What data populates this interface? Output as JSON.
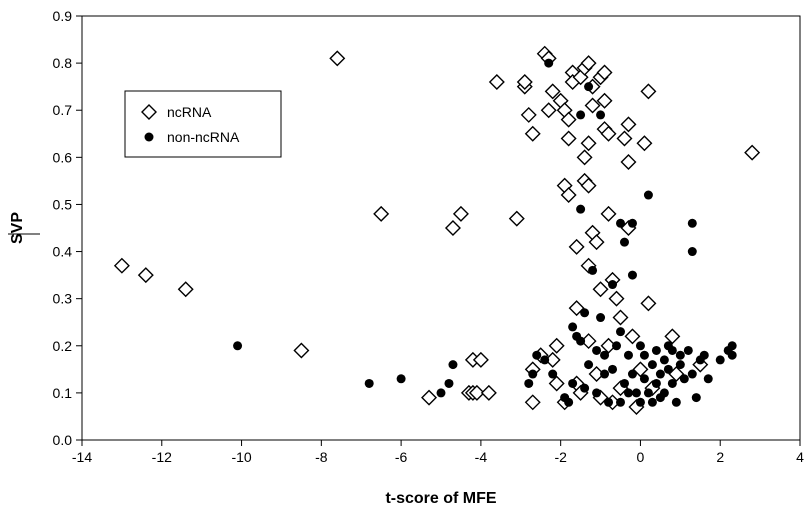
{
  "chart_data": {
    "type": "scatter",
    "title": "",
    "xlabel": "t-score of MFE",
    "ylabel": "SVP",
    "xlim": [
      -14,
      4
    ],
    "ylim": [
      0.0,
      0.9
    ],
    "x_ticks": [
      "-14",
      "-12",
      "-10",
      "-8",
      "-6",
      "-4",
      "-2",
      "0",
      "2",
      "4"
    ],
    "y_ticks": [
      "0.0",
      "0.1",
      "0.2",
      "0.3",
      "0.4",
      "0.5",
      "0.6",
      "0.7",
      "0.8",
      "0.9"
    ],
    "legend_position": "upper-left",
    "grid": false,
    "series": [
      {
        "name": "ncRNA",
        "marker": "diamond-open",
        "color": "#000000",
        "points": [
          [
            -13.0,
            0.37
          ],
          [
            -12.4,
            0.35
          ],
          [
            -11.4,
            0.32
          ],
          [
            -8.5,
            0.19
          ],
          [
            -7.6,
            0.81
          ],
          [
            -6.5,
            0.48
          ],
          [
            -5.3,
            0.09
          ],
          [
            -4.7,
            0.45
          ],
          [
            -4.5,
            0.48
          ],
          [
            -4.3,
            0.1
          ],
          [
            -4.2,
            0.17
          ],
          [
            -4.2,
            0.1
          ],
          [
            -4.0,
            0.17
          ],
          [
            -4.1,
            0.1
          ],
          [
            -3.8,
            0.1
          ],
          [
            -3.6,
            0.76
          ],
          [
            -3.1,
            0.47
          ],
          [
            -2.9,
            0.75
          ],
          [
            -2.9,
            0.76
          ],
          [
            -2.8,
            0.69
          ],
          [
            -2.7,
            0.08
          ],
          [
            -2.7,
            0.65
          ],
          [
            -2.7,
            0.15
          ],
          [
            -2.5,
            0.18
          ],
          [
            -2.4,
            0.82
          ],
          [
            -2.3,
            0.81
          ],
          [
            -2.3,
            0.7
          ],
          [
            -2.2,
            0.74
          ],
          [
            -2.2,
            0.17
          ],
          [
            -2.1,
            0.12
          ],
          [
            -2.1,
            0.2
          ],
          [
            -2.0,
            0.72
          ],
          [
            -1.9,
            0.7
          ],
          [
            -1.9,
            0.08
          ],
          [
            -1.9,
            0.54
          ],
          [
            -1.8,
            0.52
          ],
          [
            -1.8,
            0.68
          ],
          [
            -1.8,
            0.64
          ],
          [
            -1.7,
            0.78
          ],
          [
            -1.7,
            0.76
          ],
          [
            -1.6,
            0.12
          ],
          [
            -1.6,
            0.41
          ],
          [
            -1.6,
            0.28
          ],
          [
            -1.5,
            0.1
          ],
          [
            -1.5,
            0.77
          ],
          [
            -1.4,
            0.79
          ],
          [
            -1.4,
            0.55
          ],
          [
            -1.4,
            0.6
          ],
          [
            -1.3,
            0.63
          ],
          [
            -1.3,
            0.54
          ],
          [
            -1.3,
            0.37
          ],
          [
            -1.3,
            0.21
          ],
          [
            -1.3,
            0.8
          ],
          [
            -1.2,
            0.75
          ],
          [
            -1.2,
            0.71
          ],
          [
            -1.2,
            0.44
          ],
          [
            -1.1,
            0.42
          ],
          [
            -1.1,
            0.14
          ],
          [
            -1.0,
            0.77
          ],
          [
            -1.0,
            0.32
          ],
          [
            -1.0,
            0.09
          ],
          [
            -0.9,
            0.78
          ],
          [
            -0.9,
            0.66
          ],
          [
            -0.9,
            0.72
          ],
          [
            -0.8,
            0.65
          ],
          [
            -0.8,
            0.48
          ],
          [
            -0.8,
            0.2
          ],
          [
            -0.7,
            0.34
          ],
          [
            -0.7,
            0.08
          ],
          [
            -0.6,
            0.3
          ],
          [
            -0.5,
            0.26
          ],
          [
            -0.5,
            0.11
          ],
          [
            -0.4,
            0.64
          ],
          [
            -0.3,
            0.67
          ],
          [
            -0.3,
            0.59
          ],
          [
            -0.3,
            0.45
          ],
          [
            -0.2,
            0.22
          ],
          [
            -0.1,
            0.07
          ],
          [
            0.0,
            0.15
          ],
          [
            0.1,
            0.63
          ],
          [
            0.2,
            0.74
          ],
          [
            0.2,
            0.29
          ],
          [
            0.3,
            0.11
          ],
          [
            0.8,
            0.22
          ],
          [
            0.9,
            0.14
          ],
          [
            1.5,
            0.16
          ],
          [
            2.8,
            0.61
          ]
        ]
      },
      {
        "name": "non-ncRNA",
        "marker": "circle-filled",
        "color": "#000000",
        "points": [
          [
            -10.1,
            0.2
          ],
          [
            -6.8,
            0.12
          ],
          [
            -6.0,
            0.13
          ],
          [
            -5.0,
            0.1
          ],
          [
            -4.8,
            0.12
          ],
          [
            -4.7,
            0.16
          ],
          [
            -2.8,
            0.12
          ],
          [
            -2.7,
            0.14
          ],
          [
            -2.6,
            0.18
          ],
          [
            -2.4,
            0.17
          ],
          [
            -2.3,
            0.8
          ],
          [
            -2.2,
            0.14
          ],
          [
            -1.9,
            0.09
          ],
          [
            -1.8,
            0.08
          ],
          [
            -1.7,
            0.12
          ],
          [
            -1.7,
            0.24
          ],
          [
            -1.6,
            0.22
          ],
          [
            -1.5,
            0.69
          ],
          [
            -1.5,
            0.49
          ],
          [
            -1.5,
            0.21
          ],
          [
            -1.4,
            0.27
          ],
          [
            -1.4,
            0.11
          ],
          [
            -1.3,
            0.75
          ],
          [
            -1.3,
            0.16
          ],
          [
            -1.2,
            0.36
          ],
          [
            -1.1,
            0.19
          ],
          [
            -1.1,
            0.1
          ],
          [
            -1.0,
            0.26
          ],
          [
            -1.0,
            0.69
          ],
          [
            -0.9,
            0.14
          ],
          [
            -0.8,
            0.08
          ],
          [
            -0.7,
            0.33
          ],
          [
            -0.7,
            0.15
          ],
          [
            -0.6,
            0.2
          ],
          [
            -0.5,
            0.46
          ],
          [
            -0.5,
            0.23
          ],
          [
            -0.5,
            0.08
          ],
          [
            -0.4,
            0.42
          ],
          [
            -0.4,
            0.12
          ],
          [
            -0.3,
            0.18
          ],
          [
            -0.2,
            0.14
          ],
          [
            -0.2,
            0.35
          ],
          [
            -0.2,
            0.46
          ],
          [
            -0.1,
            0.1
          ],
          [
            0.0,
            0.08
          ],
          [
            0.1,
            0.18
          ],
          [
            0.1,
            0.13
          ],
          [
            0.2,
            0.52
          ],
          [
            0.2,
            0.1
          ],
          [
            0.3,
            0.16
          ],
          [
            0.3,
            0.08
          ],
          [
            0.4,
            0.19
          ],
          [
            0.4,
            0.12
          ],
          [
            0.5,
            0.14
          ],
          [
            0.6,
            0.17
          ],
          [
            0.6,
            0.1
          ],
          [
            0.7,
            0.15
          ],
          [
            0.8,
            0.19
          ],
          [
            0.8,
            0.12
          ],
          [
            0.9,
            0.08
          ],
          [
            1.0,
            0.16
          ],
          [
            1.1,
            0.13
          ],
          [
            1.2,
            0.19
          ],
          [
            1.3,
            0.46
          ],
          [
            1.3,
            0.4
          ],
          [
            1.3,
            0.14
          ],
          [
            1.4,
            0.09
          ],
          [
            1.5,
            0.17
          ],
          [
            1.6,
            0.18
          ],
          [
            1.7,
            0.13
          ],
          [
            2.0,
            0.17
          ],
          [
            2.2,
            0.19
          ],
          [
            2.3,
            0.18
          ],
          [
            2.3,
            0.2
          ],
          [
            -0.9,
            0.18
          ],
          [
            0.0,
            0.2
          ],
          [
            -0.3,
            0.1
          ],
          [
            0.5,
            0.09
          ],
          [
            1.0,
            0.18
          ],
          [
            0.7,
            0.2
          ]
        ]
      }
    ]
  }
}
